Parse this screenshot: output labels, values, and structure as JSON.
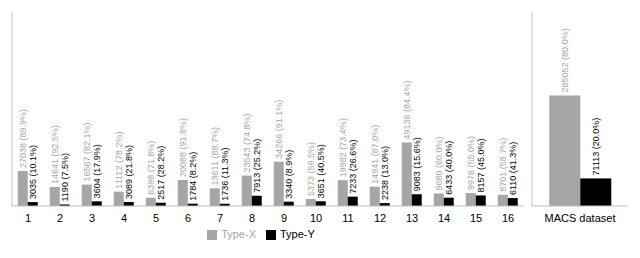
{
  "chart_data": [
    {
      "type": "bar",
      "categories": [
        "1",
        "2",
        "3",
        "4",
        "5",
        "6",
        "7",
        "8",
        "9",
        "10",
        "11",
        "12",
        "13",
        "14",
        "15",
        "16"
      ],
      "series": [
        {
          "name": "Type-X",
          "color": "#a6a6a6",
          "values": [
            27038,
            14641,
            16567,
            11112,
            6398,
            20088,
            13611,
            23543,
            34266,
            5373,
            19982,
            14941,
            49136,
            9680,
            9976,
            8701
          ],
          "value_labels": [
            "27038 (89.9%)",
            "14641 (92.5%)",
            "16567 (82.1%)",
            "11112 (78.2%)",
            "6398 (71.8%)",
            "20088 (91.8%)",
            "13611 (88.7%)",
            "23543 (74.8%)",
            "34266 (91.1%)",
            "5373 (59.5%)",
            "19982 (73.4%)",
            "14941 (87.0%)",
            "49136 (84.4%)",
            "9680 (60.0%)",
            "9976 (55.0%)",
            "8701 (58.7%)"
          ]
        },
        {
          "name": "Type-Y",
          "color": "#000000",
          "values": [
            3035,
            1190,
            3604,
            3089,
            2517,
            1784,
            1736,
            7913,
            3340,
            3651,
            7233,
            2238,
            9083,
            6433,
            8157,
            6110
          ],
          "value_labels": [
            "3035 (10.1%)",
            "1190 (7.5%)",
            "3604 (17.9%)",
            "3089 (21.8%)",
            "2517 (28.2%)",
            "1784 (8.2%)",
            "1736 (11.3%)",
            "7913 (25.2%)",
            "3340 (8.9%)",
            "3651 (40.5%)",
            "7233 (26.6%)",
            "2238 (13.0%)",
            "9083 (15.6%)",
            "6433 (40.0%)",
            "8157 (45.0%)",
            "6110 (41.3%)"
          ]
        }
      ],
      "ylim": [
        0,
        150000
      ],
      "yticks": [
        0,
        150000
      ],
      "data_labels": true,
      "tick_labels": "x",
      "legend": "bottom"
    },
    {
      "type": "bar",
      "categories": [
        "MACS dataset"
      ],
      "series": [
        {
          "name": "Type-X",
          "color": "#a6a6a6",
          "values": [
            285052
          ],
          "value_labels": [
            "285052 (80.0%)"
          ]
        },
        {
          "name": "Type-Y",
          "color": "#000000",
          "values": [
            71113
          ],
          "value_labels": [
            "71113 (20.0%)"
          ]
        }
      ],
      "ylim": [
        0,
        500000
      ],
      "yticks": [
        0,
        500000
      ],
      "data_labels": true,
      "tick_labels": "x"
    }
  ]
}
